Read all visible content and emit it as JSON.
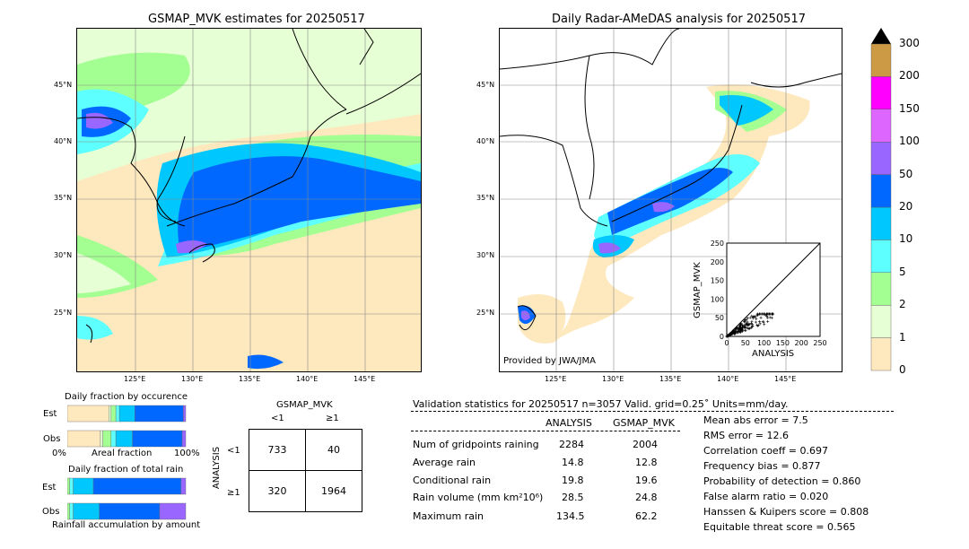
{
  "left_map": {
    "title": "GSMAP_MVK estimates for 20250517",
    "lat_labels": [
      "45°N",
      "40°N",
      "35°N",
      "30°N",
      "25°N"
    ],
    "lon_labels": [
      "125°E",
      "130°E",
      "135°E",
      "140°E",
      "145°E"
    ]
  },
  "right_map": {
    "title": "Daily Radar-AMeDAS analysis for 20250517",
    "lat_labels": [
      "45°N",
      "40°N",
      "35°N",
      "30°N",
      "25°N"
    ],
    "lon_labels": [
      "125°E",
      "130°E",
      "135°E",
      "140°E",
      "145°E"
    ],
    "credit": "Provided by JWA/JMA"
  },
  "colorbar": {
    "levels": [
      "0",
      "1",
      "2",
      "5",
      "10",
      "20",
      "50",
      "100",
      "150",
      "200",
      "300"
    ],
    "colors": [
      "#FEE8BE",
      "#E6FFD4",
      "#A3FF91",
      "#5EFFFF",
      "#00C8FF",
      "#0068FF",
      "#9966FF",
      "#DD66FF",
      "#FF00FF",
      "#CC9944"
    ]
  },
  "scatter": {
    "xlabel": "ANALYSIS",
    "ylabel": "GSMAP_MVK",
    "ticks": [
      "0",
      "50",
      "100",
      "150",
      "200",
      "250"
    ]
  },
  "occurrence": {
    "title": "Daily fraction by occurence",
    "est_label": "Est",
    "obs_label": "Obs",
    "axis_left": "0%",
    "axis_mid": "Areal fraction",
    "axis_right": "100%",
    "est_segments": [
      0.35,
      0.02,
      0.04,
      0.03,
      0.13,
      0.41,
      0.02
    ],
    "obs_segments": [
      0.28,
      0.02,
      0.07,
      0.04,
      0.14,
      0.42,
      0.03
    ]
  },
  "total_rain": {
    "title": "Daily fraction of total rain",
    "est_label": "Est",
    "obs_label": "Obs",
    "footer": "Rainfall accumulation by amount",
    "est_segments": [
      0.02,
      0.03,
      0.17,
      0.74,
      0.04
    ],
    "obs_segments": [
      0.02,
      0.03,
      0.22,
      0.51,
      0.22
    ]
  },
  "contingency": {
    "title": "GSMAP_MVK",
    "col_lt": "<1",
    "col_ge": "≥1",
    "row_label": "ANALYSIS",
    "row_lt": "<1",
    "row_ge": "≥1",
    "c00": "733",
    "c01": "40",
    "c10": "320",
    "c11": "1964"
  },
  "validation": {
    "header": "Validation statistics for 20250517  n=3057 Valid. grid=0.25˚ Units=mm/day.",
    "col_analysis": "ANALYSIS",
    "col_gsmap": "GSMAP_MVK",
    "rows": [
      {
        "label": "Num of gridpoints raining",
        "analysis": "2284",
        "gsmap": "2004"
      },
      {
        "label": "Average rain",
        "analysis": "14.8",
        "gsmap": "12.8"
      },
      {
        "label": "Conditional rain",
        "analysis": "19.8",
        "gsmap": "19.6"
      },
      {
        "label": "Rain volume (mm km²10⁶)",
        "analysis": "28.5",
        "gsmap": "24.8"
      },
      {
        "label": "Maximum rain",
        "analysis": "134.5",
        "gsmap": "62.2"
      }
    ],
    "scores": [
      "Mean abs error =    7.5",
      "RMS error =   12.6",
      "Correlation coeff =  0.697",
      "Frequency bias =  0.877",
      "Probability of detection =  0.860",
      "False alarm ratio =  0.020",
      "Hanssen & Kuipers score =  0.808",
      "Equitable threat score =  0.565"
    ]
  },
  "chart_data": [
    {
      "type": "scatter",
      "title": "",
      "xlabel": "ANALYSIS",
      "ylabel": "GSMAP_MVK",
      "xlim": [
        0,
        250
      ],
      "ylim": [
        0,
        250
      ],
      "note_points": "dense cluster of points between 0 and ~130 on ANALYSIS axis, mostly below 60 on GSMAP_MVK axis"
    },
    {
      "type": "table",
      "title": "GSMAP_MVK",
      "columns": [
        "<1",
        "≥1"
      ],
      "rows": [
        {
          "name": "<1",
          "values": [
            733,
            40
          ]
        },
        {
          "name": "≥1",
          "values": [
            320,
            1964
          ]
        }
      ]
    }
  ]
}
